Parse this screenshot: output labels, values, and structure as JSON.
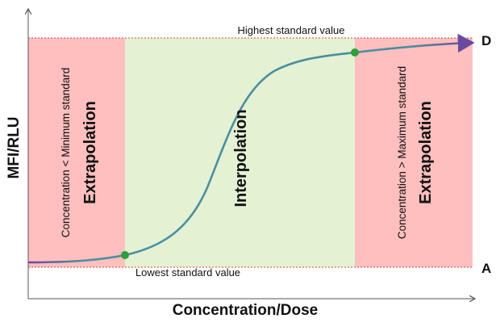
{
  "regions": {
    "left": {
      "title": "Extrapolation",
      "condition": "Concentration < Minimum standard",
      "color": "#ffbfbf"
    },
    "middle": {
      "title": "Interpolation",
      "color": "#e4f1d3"
    },
    "right": {
      "title": "Extrapolation",
      "condition": "Concentration > Maximum standard",
      "color": "#ffbfbf"
    }
  },
  "labels": {
    "highest": "Highest standard value",
    "lowest": "Lowest standard value",
    "top_asymptote": "D",
    "bottom_asymptote": "A"
  },
  "axes": {
    "x_label": "Concentration/Dose",
    "y_label": "MFI/RLU"
  },
  "colors": {
    "curve": "#4a8fa0",
    "curve_end": "#6a4aa0",
    "standard_points": "#2e9e3e",
    "guide_lines": "#d04a4a"
  }
}
